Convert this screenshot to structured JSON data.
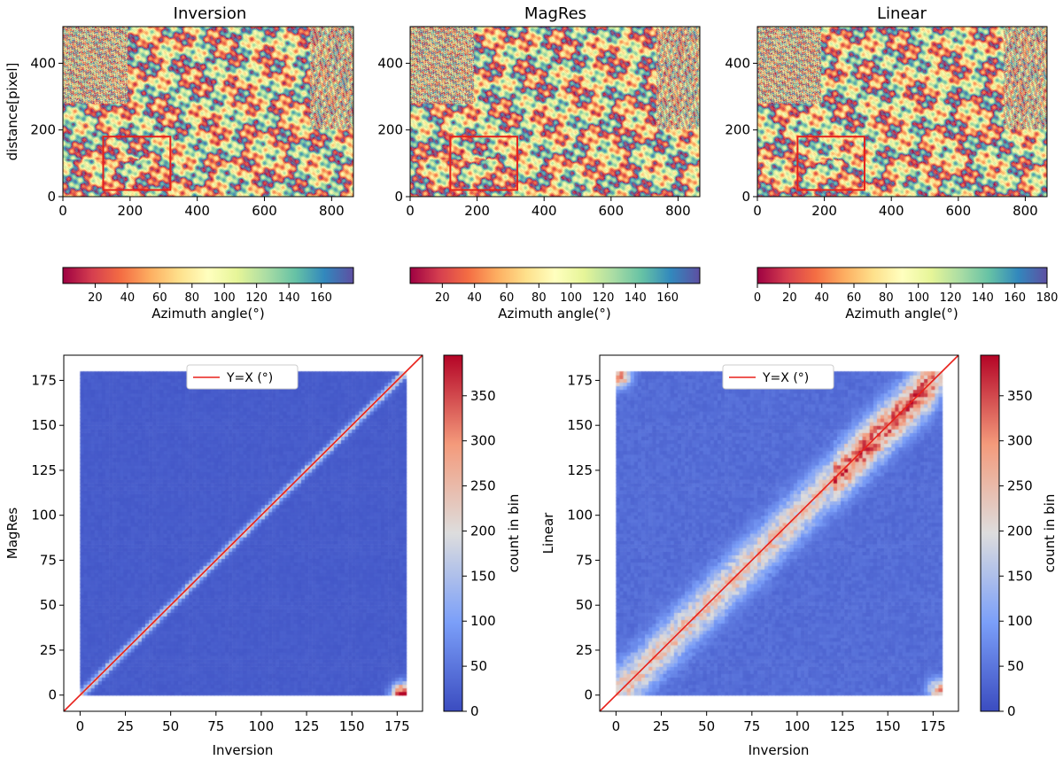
{
  "chart_data": [
    {
      "type": "heatmap",
      "title": "Inversion",
      "xlabel": "",
      "ylabel": "distance[pixel]",
      "xlim": [
        0,
        865
      ],
      "ylim": [
        0,
        510
      ],
      "xticks": [
        0,
        200,
        400,
        600,
        800
      ],
      "yticks": [
        0,
        200,
        400
      ],
      "region_box": {
        "x0": 120,
        "x1": 320,
        "y0": 20,
        "y1": 180,
        "color": "#e8211b"
      },
      "colorbar": {
        "label": "Azimuth angle(°)",
        "cmap": "Spectral",
        "range": [
          0,
          180
        ],
        "ticks": [
          20,
          40,
          60,
          80,
          100,
          120,
          140,
          160
        ]
      }
    },
    {
      "type": "heatmap",
      "title": "MagRes",
      "xlabel": "",
      "ylabel": "",
      "xlim": [
        0,
        865
      ],
      "ylim": [
        0,
        510
      ],
      "xticks": [
        0,
        200,
        400,
        600,
        800
      ],
      "yticks": [
        0,
        200,
        400
      ],
      "region_box": {
        "x0": 120,
        "x1": 320,
        "y0": 20,
        "y1": 180,
        "color": "#e8211b"
      },
      "colorbar": {
        "label": "Azimuth angle(°)",
        "cmap": "Spectral",
        "range": [
          0,
          180
        ],
        "ticks": [
          20,
          40,
          60,
          80,
          100,
          120,
          140,
          160
        ]
      }
    },
    {
      "type": "heatmap",
      "title": "Linear",
      "xlabel": "",
      "ylabel": "",
      "xlim": [
        0,
        865
      ],
      "ylim": [
        0,
        510
      ],
      "xticks": [
        0,
        200,
        400,
        600,
        800
      ],
      "yticks": [
        0,
        200,
        400
      ],
      "region_box": {
        "x0": 120,
        "x1": 320,
        "y0": 20,
        "y1": 180,
        "color": "#e8211b"
      },
      "colorbar": {
        "label": "Azimuth angle(°)",
        "cmap": "Spectral",
        "range": [
          0,
          180
        ],
        "ticks": [
          0,
          20,
          40,
          60,
          80,
          100,
          120,
          140,
          160,
          180
        ]
      }
    },
    {
      "type": "heatmap",
      "subtype": "2d-histogram",
      "xlabel": "Inversion",
      "ylabel": "MagRes",
      "xlim": [
        -9,
        189
      ],
      "ylim": [
        -9,
        189
      ],
      "xticks": [
        0,
        25,
        50,
        75,
        100,
        125,
        150,
        175
      ],
      "yticks": [
        0,
        25,
        50,
        75,
        100,
        125,
        150,
        175
      ],
      "data_range": [
        0,
        180
      ],
      "background_count": 20,
      "diagonal_peak_count": 200,
      "diagonal_halfwidth_deg": 2,
      "corner_hotspot": {
        "x": 178,
        "y": 1,
        "count": 390
      },
      "reference_line": {
        "label": "Y=X (°)",
        "color": "#e8211b"
      },
      "legend_loc": "upper center",
      "colorbar": {
        "label": "count in bin",
        "cmap": "coolwarm",
        "range": [
          0,
          395
        ],
        "ticks": [
          0,
          50,
          100,
          150,
          200,
          250,
          300,
          350
        ]
      }
    },
    {
      "type": "heatmap",
      "subtype": "2d-histogram",
      "xlabel": "Inversion",
      "ylabel": "Linear",
      "xlim": [
        -9,
        189
      ],
      "ylim": [
        -9,
        189
      ],
      "xticks": [
        0,
        25,
        50,
        75,
        100,
        125,
        150,
        175
      ],
      "yticks": [
        0,
        25,
        50,
        75,
        100,
        125,
        150,
        175
      ],
      "data_range": [
        0,
        180
      ],
      "background_count": 40,
      "diagonal_peak_count": 230,
      "diagonal_halfwidth_deg": 10,
      "peak_region": {
        "x_range": [
          120,
          175
        ],
        "count": 320
      },
      "corner_hotspots": [
        {
          "x": 2,
          "y": 177,
          "count": 280
        },
        {
          "x": 178,
          "y": 3,
          "count": 250
        }
      ],
      "reference_line": {
        "label": "Y=X (°)",
        "color": "#e8211b"
      },
      "legend_loc": "upper center",
      "colorbar": {
        "label": "count in bin",
        "cmap": "coolwarm",
        "range": [
          0,
          395
        ],
        "ticks": [
          0,
          50,
          100,
          150,
          200,
          250,
          300,
          350
        ]
      }
    }
  ]
}
